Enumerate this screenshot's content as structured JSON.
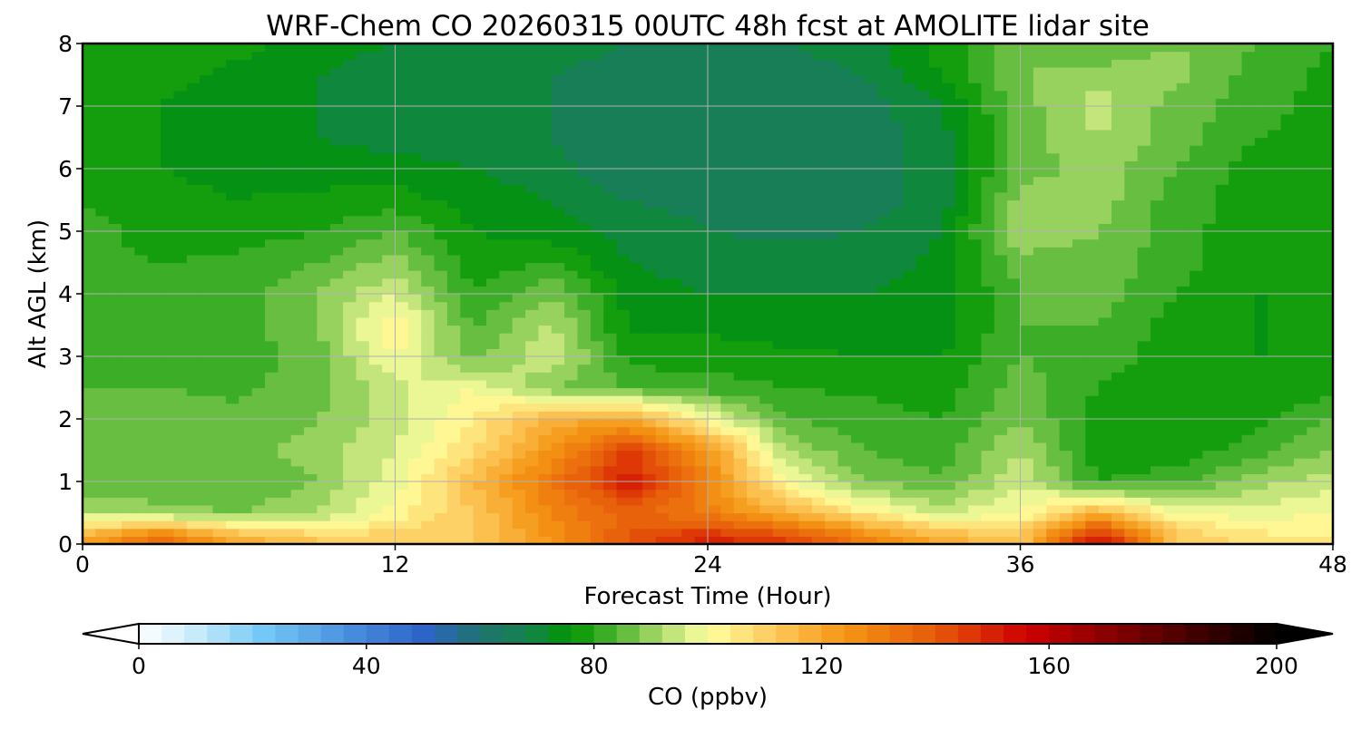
{
  "chart_data": {
    "type": "heatmap",
    "title": "WRF-Chem CO  20260315 00UTC 48h fcst at AMOLITE lidar site",
    "xlabel": "Forecast Time (Hour)",
    "ylabel": "Alt AGL (km)",
    "xlim": [
      0,
      48
    ],
    "ylim": [
      0,
      8
    ],
    "x_ticks": [
      0,
      12,
      24,
      36,
      48
    ],
    "y_ticks": [
      0,
      1,
      2,
      3,
      4,
      5,
      6,
      7,
      8
    ],
    "grid": true,
    "z_units_label": "CO  (ppbv)",
    "colorbar": {
      "label": "CO  (ppbv)",
      "min": 0,
      "max": 200,
      "ticks": [
        0,
        40,
        80,
        120,
        160,
        200
      ],
      "extend": "both",
      "orientation": "horizontal",
      "placement": "bottom"
    },
    "x": [
      0,
      3,
      6,
      9,
      12,
      15,
      18,
      21,
      24,
      27,
      30,
      33,
      36,
      39,
      42,
      45,
      48
    ],
    "y": [
      0.1,
      0.5,
      1,
      1.5,
      2,
      2.5,
      3,
      3.5,
      4,
      4.5,
      5,
      5.5,
      6,
      6.5,
      7,
      7.5,
      8
    ],
    "values": [
      [
        120,
        135,
        118,
        112,
        110,
        112,
        125,
        140,
        150,
        145,
        130,
        118,
        112,
        155,
        112,
        106,
        104
      ],
      [
        92,
        90,
        88,
        92,
        102,
        112,
        128,
        138,
        130,
        118,
        105,
        95,
        100,
        118,
        100,
        98,
        100
      ],
      [
        85,
        84,
        84,
        88,
        98,
        115,
        132,
        152,
        128,
        100,
        88,
        84,
        96,
        80,
        82,
        90,
        95
      ],
      [
        88,
        87,
        86,
        90,
        96,
        108,
        125,
        145,
        125,
        92,
        84,
        82,
        92,
        78,
        78,
        82,
        88
      ],
      [
        87,
        86,
        85,
        88,
        94,
        104,
        118,
        120,
        100,
        84,
        82,
        80,
        88,
        78,
        77,
        78,
        84
      ],
      [
        84,
        84,
        83,
        86,
        95,
        100,
        88,
        84,
        82,
        80,
        79,
        78,
        86,
        80,
        77,
        77,
        78
      ],
      [
        82,
        83,
        82,
        86,
        100,
        86,
        96,
        78,
        78,
        77,
        76,
        76,
        84,
        82,
        78,
        76,
        76
      ],
      [
        81,
        82,
        82,
        88,
        104,
        83,
        93,
        75,
        75,
        74,
        74,
        74,
        84,
        84,
        78,
        76,
        76
      ],
      [
        80,
        81,
        82,
        88,
        96,
        80,
        88,
        74,
        72,
        72,
        72,
        74,
        84,
        86,
        80,
        76,
        76
      ],
      [
        81,
        80,
        81,
        84,
        90,
        78,
        80,
        72,
        70,
        70,
        70,
        73,
        86,
        86,
        82,
        76,
        77
      ],
      [
        82,
        78,
        78,
        80,
        84,
        76,
        74,
        70,
        68,
        67,
        68,
        72,
        92,
        88,
        82,
        77,
        78
      ],
      [
        80,
        77,
        76,
        77,
        78,
        74,
        72,
        68,
        67,
        66,
        66,
        70,
        90,
        90,
        82,
        78,
        78
      ],
      [
        78,
        76,
        75,
        74,
        74,
        72,
        70,
        64,
        66,
        66,
        66,
        70,
        86,
        90,
        84,
        78,
        78
      ],
      [
        78,
        76,
        74,
        72,
        70,
        70,
        68,
        64,
        66,
        65,
        66,
        70,
        86,
        92,
        86,
        80,
        78
      ],
      [
        78,
        76,
        74,
        72,
        69,
        70,
        68,
        64,
        65,
        64,
        66,
        72,
        86,
        94,
        86,
        82,
        78
      ],
      [
        78,
        77,
        75,
        72,
        69,
        69,
        68,
        66,
        67,
        66,
        68,
        76,
        88,
        90,
        90,
        82,
        79
      ],
      [
        80,
        80,
        77,
        74,
        72,
        70,
        70,
        68,
        68,
        68,
        70,
        78,
        86,
        84,
        88,
        84,
        80
      ]
    ]
  }
}
